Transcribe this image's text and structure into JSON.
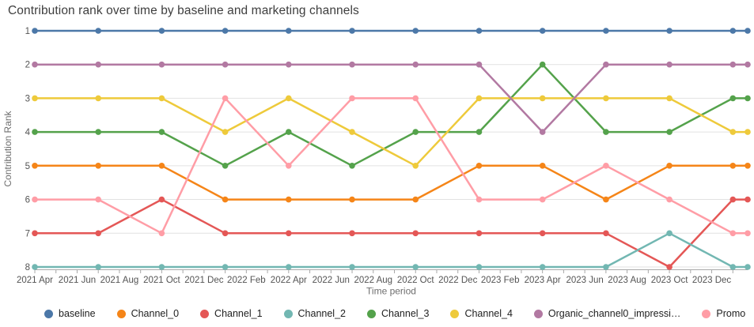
{
  "title": "Contribution rank over time by baseline and marketing channels",
  "axes": {
    "x_title": "Time period",
    "y_title": "Contribution Rank",
    "y_tick_labels": [
      "1",
      "2",
      "3",
      "4",
      "5",
      "6",
      "7",
      "8"
    ],
    "x_tick_labels": [
      "2021 Apr",
      "2021 Jun",
      "2021 Aug",
      "2021 Oct",
      "2021 Dec",
      "2022 Feb",
      "2022 Apr",
      "2022 Jun",
      "2022 Aug",
      "2022 Oct",
      "2022 Dec",
      "2023 Feb",
      "2023 Apr",
      "2023 Jun",
      "2023 Aug",
      "2023 Oct",
      "2023 Dec"
    ],
    "x_tick_label_months": [
      0,
      2,
      4,
      6,
      8,
      10,
      12,
      14,
      16,
      18,
      20,
      22,
      24,
      26,
      28,
      30,
      32
    ],
    "x_minor_tick_months": [
      0,
      1,
      2,
      3,
      4,
      5,
      6,
      7,
      8,
      9,
      10,
      11,
      12,
      13,
      14,
      15,
      16,
      17,
      18,
      19,
      20,
      21,
      22,
      23,
      24,
      25,
      26,
      27,
      28,
      29,
      30,
      31,
      32,
      33
    ]
  },
  "chart_data": {
    "type": "line",
    "title": "Contribution rank over time by baseline and marketing channels",
    "xlabel": "Time period",
    "ylabel": "Contribution Rank",
    "x_unit": "months since 2021 Apr (quarterly points Apr/Jul/Oct/Jan, final partial point)",
    "x": [
      0,
      3,
      6,
      9,
      12,
      15,
      18,
      21,
      24,
      27,
      30,
      33,
      33.7
    ],
    "ylim": [
      1,
      8
    ],
    "y_inverted": true,
    "grid": "horizontal",
    "legend_position": "bottom",
    "marker": "circle",
    "series": [
      {
        "name": "baseline",
        "color": "#4c78a8",
        "values": [
          1,
          1,
          1,
          1,
          1,
          1,
          1,
          1,
          1,
          1,
          1,
          1,
          1
        ]
      },
      {
        "name": "Channel_0",
        "color": "#f58518",
        "values": [
          5,
          5,
          5,
          6,
          6,
          6,
          6,
          5,
          5,
          6,
          5,
          5,
          5
        ]
      },
      {
        "name": "Channel_1",
        "color": "#e45756",
        "values": [
          7,
          7,
          6,
          7,
          7,
          7,
          7,
          7,
          7,
          7,
          8,
          6,
          6
        ]
      },
      {
        "name": "Channel_2",
        "color": "#72b7b2",
        "values": [
          8,
          8,
          8,
          8,
          8,
          8,
          8,
          8,
          8,
          8,
          7,
          8,
          8
        ]
      },
      {
        "name": "Channel_3",
        "color": "#54a24b",
        "values": [
          4,
          4,
          4,
          5,
          4,
          5,
          4,
          4,
          2,
          4,
          4,
          3,
          3
        ]
      },
      {
        "name": "Channel_4",
        "color": "#eeca3b",
        "values": [
          3,
          3,
          3,
          4,
          3,
          4,
          5,
          3,
          3,
          3,
          3,
          4,
          4
        ]
      },
      {
        "name": "Organic_channel0_impressions",
        "color": "#b279a2",
        "values": [
          2,
          2,
          2,
          2,
          2,
          2,
          2,
          2,
          4,
          2,
          2,
          2,
          2
        ]
      },
      {
        "name": "Promo",
        "color": "#ff9da6",
        "values": [
          6,
          6,
          7,
          3,
          5,
          3,
          3,
          6,
          6,
          5,
          6,
          7,
          7
        ]
      }
    ]
  },
  "legend": {
    "items": [
      {
        "label": "baseline",
        "color": "#4c78a8"
      },
      {
        "label": "Channel_0",
        "color": "#f58518"
      },
      {
        "label": "Channel_1",
        "color": "#e45756"
      },
      {
        "label": "Channel_2",
        "color": "#72b7b2"
      },
      {
        "label": "Channel_3",
        "color": "#54a24b"
      },
      {
        "label": "Channel_4",
        "color": "#eeca3b"
      },
      {
        "label": "Organic_channel0_impressi…",
        "color": "#b279a2"
      },
      {
        "label": "Promo",
        "color": "#ff9da6"
      }
    ]
  },
  "style": {
    "gridline_color": "#e2e2e2",
    "axis_line_color": "#a8a8a8",
    "tick_label_color": "#545454",
    "axis_title_color": "#6e6e6e",
    "title_color": "#3e3e3e"
  }
}
